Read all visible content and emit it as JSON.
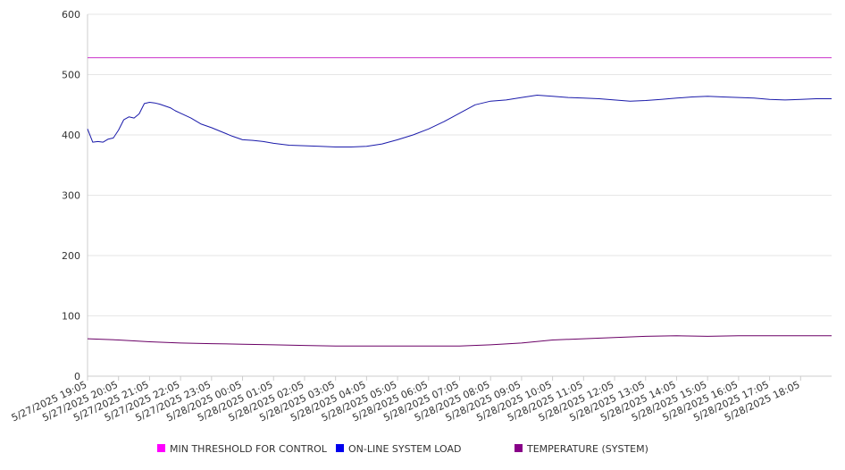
{
  "chart_data": {
    "type": "line",
    "ylim": [
      0,
      600
    ],
    "yticks": [
      0,
      100,
      200,
      300,
      400,
      500,
      600
    ],
    "x_ticks": [
      "5/27/2025 19:05",
      "5/27/2025 20:05",
      "5/27/2025 21:05",
      "5/27/2025 22:05",
      "5/27/2025 23:05",
      "5/28/2025 00:05",
      "5/28/2025 01:05",
      "5/28/2025 02:05",
      "5/28/2025 03:05",
      "5/28/2025 04:05",
      "5/28/2025 05:05",
      "5/28/2025 06:05",
      "5/28/2025 07:05",
      "5/28/2025 08:05",
      "5/28/2025 09:05",
      "5/28/2025 10:05",
      "5/28/2025 11:05",
      "5/28/2025 12:05",
      "5/28/2025 13:05",
      "5/28/2025 14:05",
      "5/28/2025 15:05",
      "5/28/2025 16:05",
      "5/28/2025 17:05",
      "5/28/2025 18:05"
    ],
    "x_end": "5/28/2025 19:05",
    "grid": true,
    "legend": "bottom",
    "series": [
      {
        "name": "MIN THRESHOLD FOR CONTROL",
        "color": "#ff00ff",
        "line_color": "#cc33cc",
        "x": [
          "5/27/2025 19:05",
          "5/28/2025 19:05"
        ],
        "values": [
          528,
          528
        ]
      },
      {
        "name": "ON-LINE SYSTEM LOAD",
        "color": "#0000ee",
        "line_color": "#1a1aaa",
        "x": [
          "5/27/2025 19:05",
          "5/27/2025 19:15",
          "5/27/2025 19:25",
          "5/27/2025 19:35",
          "5/27/2025 19:45",
          "5/27/2025 19:55",
          "5/27/2025 20:05",
          "5/27/2025 20:15",
          "5/27/2025 20:25",
          "5/27/2025 20:35",
          "5/27/2025 20:45",
          "5/27/2025 20:55",
          "5/27/2025 21:05",
          "5/27/2025 21:15",
          "5/27/2025 21:25",
          "5/27/2025 21:35",
          "5/27/2025 21:45",
          "5/27/2025 21:55",
          "5/27/2025 22:05",
          "5/27/2025 22:25",
          "5/27/2025 22:45",
          "5/27/2025 23:05",
          "5/27/2025 23:25",
          "5/27/2025 23:45",
          "5/28/2025 00:05",
          "5/28/2025 00:25",
          "5/28/2025 00:45",
          "5/28/2025 01:05",
          "5/28/2025 01:35",
          "5/28/2025 02:05",
          "5/28/2025 02:35",
          "5/28/2025 03:05",
          "5/28/2025 03:35",
          "5/28/2025 04:05",
          "5/28/2025 04:35",
          "5/28/2025 05:05",
          "5/28/2025 05:35",
          "5/28/2025 06:05",
          "5/28/2025 06:35",
          "5/28/2025 07:05",
          "5/28/2025 07:35",
          "5/28/2025 08:05",
          "5/28/2025 08:35",
          "5/28/2025 09:05",
          "5/28/2025 09:35",
          "5/28/2025 10:05",
          "5/28/2025 10:35",
          "5/28/2025 11:05",
          "5/28/2025 11:35",
          "5/28/2025 12:05",
          "5/28/2025 12:35",
          "5/28/2025 13:05",
          "5/28/2025 13:35",
          "5/28/2025 14:05",
          "5/28/2025 14:35",
          "5/28/2025 15:05",
          "5/28/2025 15:35",
          "5/28/2025 16:05",
          "5/28/2025 16:35",
          "5/28/2025 17:05",
          "5/28/2025 17:35",
          "5/28/2025 18:05",
          "5/28/2025 18:35",
          "5/28/2025 19:05"
        ],
        "values": [
          410,
          388,
          389,
          388,
          393,
          395,
          408,
          425,
          430,
          428,
          435,
          452,
          454,
          453,
          451,
          448,
          445,
          440,
          436,
          428,
          418,
          412,
          405,
          398,
          392,
          391,
          389,
          386,
          383,
          382,
          381,
          380,
          380,
          381,
          385,
          392,
          400,
          410,
          422,
          436,
          450,
          456,
          458,
          462,
          466,
          464,
          462,
          461,
          460,
          458,
          456,
          457,
          459,
          461,
          463,
          464,
          463,
          462,
          461,
          459,
          458,
          459,
          460,
          460
        ]
      },
      {
        "name": "TEMPERATURE (SYSTEM)",
        "color": "#880088",
        "line_color": "#6a0066",
        "x": [
          "5/27/2025 19:05",
          "5/27/2025 20:05",
          "5/27/2025 21:05",
          "5/27/2025 22:05",
          "5/27/2025 23:05",
          "5/28/2025 00:05",
          "5/28/2025 01:05",
          "5/28/2025 02:05",
          "5/28/2025 03:05",
          "5/28/2025 04:05",
          "5/28/2025 05:05",
          "5/28/2025 06:05",
          "5/28/2025 07:05",
          "5/28/2025 08:05",
          "5/28/2025 09:05",
          "5/28/2025 10:05",
          "5/28/2025 11:05",
          "5/28/2025 12:05",
          "5/28/2025 13:05",
          "5/28/2025 14:05",
          "5/28/2025 15:05",
          "5/28/2025 16:05",
          "5/28/2025 17:05",
          "5/28/2025 18:05",
          "5/28/2025 19:05"
        ],
        "values": [
          62,
          60,
          57,
          55,
          54,
          53,
          52,
          51,
          50,
          50,
          50,
          50,
          50,
          52,
          55,
          60,
          62,
          64,
          66,
          67,
          66,
          67,
          67,
          67,
          67
        ]
      }
    ]
  }
}
